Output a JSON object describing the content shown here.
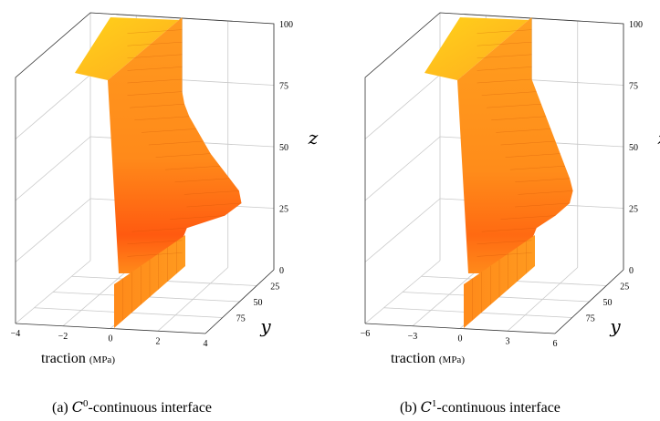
{
  "chart_data": [
    {
      "type": "surface3d",
      "subfigure": "(a)",
      "caption_prefix": "(a) ",
      "caption_symbol": "C",
      "caption_sup": "0",
      "caption_suffix": "-continuous interface",
      "xlabel": "traction",
      "xunit": "(MPa)",
      "ylabel": "y",
      "zlabel": "z",
      "x_ticks": [
        "−4",
        "−2",
        "0",
        "2",
        "4"
      ],
      "y_ticks": [
        "25",
        "50",
        "75"
      ],
      "z_ticks": [
        "0",
        "25",
        "50",
        "75",
        "100"
      ],
      "xlim": [
        -4,
        4
      ],
      "ylim": [
        0,
        100
      ],
      "zlim": [
        0,
        100
      ],
      "surface_profile": {
        "z": [
          0,
          5,
          10,
          15,
          20,
          25,
          30,
          35,
          40,
          45,
          50,
          55,
          60,
          65,
          70,
          75,
          80,
          85,
          90,
          95,
          100
        ],
        "traction_near_y0": [
          0,
          0,
          0,
          0.2,
          1.8,
          2.5,
          2.4,
          2.0,
          1.6,
          1.2,
          0.9,
          0.6,
          0.3,
          0.1,
          0,
          0,
          0,
          0,
          0,
          0,
          0
        ],
        "traction_far_y": [
          0,
          0,
          0,
          0,
          0,
          0,
          0,
          0,
          0,
          0,
          0,
          0,
          0,
          0,
          0,
          0,
          0,
          0,
          0,
          0,
          0
        ]
      }
    },
    {
      "type": "surface3d",
      "subfigure": "(b)",
      "caption_prefix": "(b) ",
      "caption_symbol": "C",
      "caption_sup": "1",
      "caption_suffix": "-continuous interface",
      "xlabel": "traction",
      "xunit": "(MPa)",
      "ylabel": "y",
      "zlabel": "z",
      "x_ticks": [
        "−6",
        "−3",
        "0",
        "3",
        "6"
      ],
      "y_ticks": [
        "25",
        "50",
        "75"
      ],
      "z_ticks": [
        "0",
        "25",
        "50",
        "75",
        "100"
      ],
      "xlim": [
        -6,
        6
      ],
      "ylim": [
        0,
        100
      ],
      "zlim": [
        0,
        100
      ],
      "surface_profile": {
        "z": [
          0,
          5,
          10,
          15,
          20,
          25,
          30,
          35,
          40,
          45,
          50,
          55,
          60,
          65,
          70,
          75,
          80,
          85,
          90,
          95,
          100
        ],
        "traction_near_y0": [
          0,
          0,
          0,
          0.3,
          1.5,
          2.4,
          2.6,
          2.4,
          2.1,
          1.8,
          1.5,
          1.2,
          0.9,
          0.6,
          0.3,
          0,
          0,
          0,
          0,
          0,
          0
        ],
        "traction_far_y": [
          0,
          0,
          0,
          0,
          0,
          0,
          0,
          0,
          0,
          0,
          0,
          0,
          0,
          0,
          0,
          0,
          0,
          0,
          0,
          0,
          0
        ]
      }
    }
  ],
  "colors": {
    "surface_light": "#ffc21a",
    "surface_mid": "#ff9a1f",
    "surface_dark": "#ff5a10",
    "mesh": "#c44a00",
    "grid": "#c8c8c8",
    "axis": "#333333"
  }
}
